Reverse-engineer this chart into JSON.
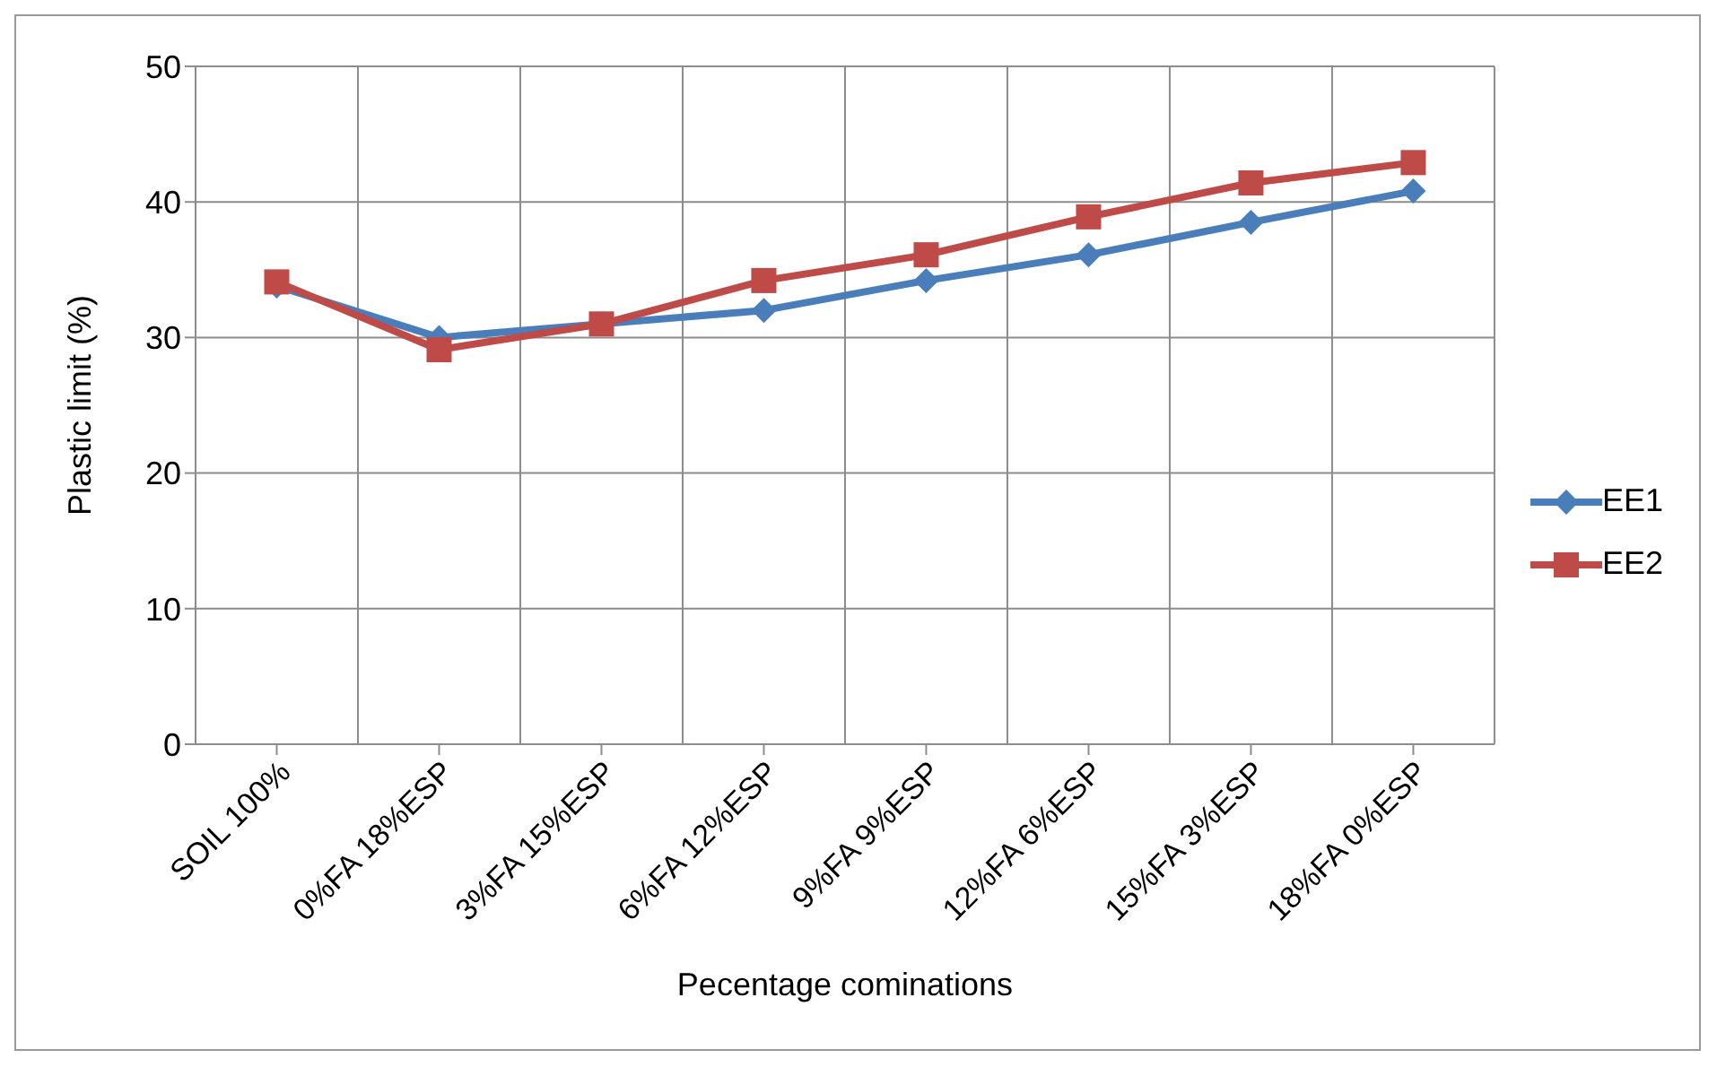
{
  "chart_data": {
    "type": "line",
    "xlabel": "Pecentage cominations",
    "ylabel": "Plastic limit (%)",
    "categories": [
      "SOIL 100%",
      "0%FA 18%ESP",
      "3%FA 15%ESP",
      "6%FA 12%ESP",
      "9%FA 9%ESP",
      "12%FA 6%ESP",
      "15%FA 3%ESP",
      "18%FA 0%ESP"
    ],
    "series": [
      {
        "name": "EE1",
        "color": "#4a7ebb",
        "marker": "diamond",
        "values": [
          33.8,
          30,
          31,
          32,
          34.2,
          36.1,
          38.5,
          40.8
        ]
      },
      {
        "name": "EE2",
        "color": "#be4b48",
        "marker": "square",
        "values": [
          34.1,
          29.1,
          31,
          34.2,
          36.1,
          38.9,
          41.4,
          42.9
        ]
      }
    ],
    "ylim": [
      0,
      50
    ],
    "yticks": [
      0,
      10,
      20,
      30,
      40,
      50
    ],
    "grid": true,
    "legend": "right"
  }
}
